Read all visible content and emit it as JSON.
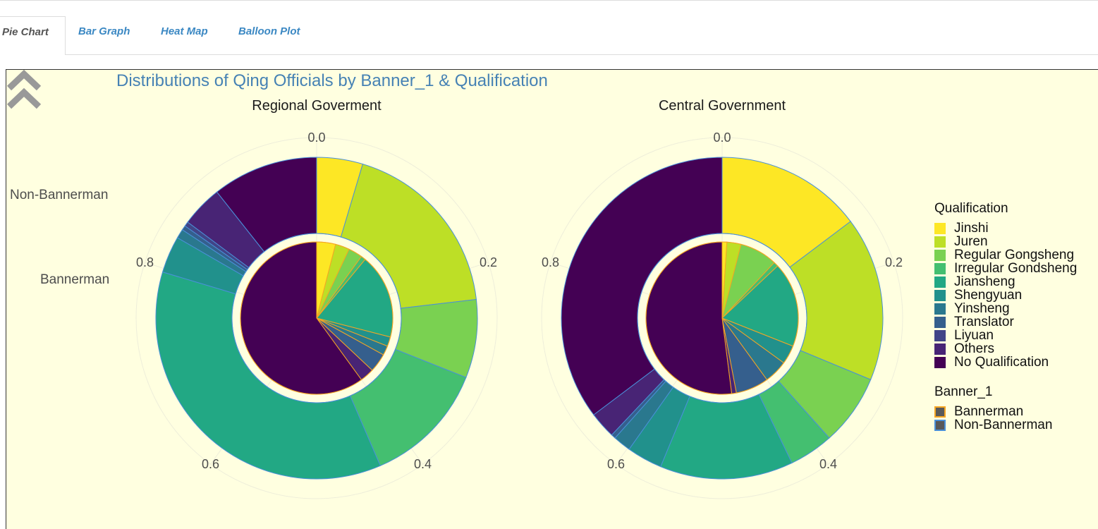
{
  "tabs": [
    {
      "label": "Pie Chart",
      "active": true
    },
    {
      "label": "Bar Graph",
      "active": false
    },
    {
      "label": "Heat Map",
      "active": false
    },
    {
      "label": "Balloon Plot",
      "active": false
    }
  ],
  "chart_title": "Distributions of Qing Officials by Banner_1 & Qualification",
  "ring_labels": {
    "outer": "Non-Bannerman",
    "inner": "Bannerman"
  },
  "tick_labels": [
    "0.0",
    "0.2",
    "0.4",
    "0.6",
    "0.8"
  ],
  "legend": {
    "qualification_title": "Qualification",
    "banner_title": "Banner_1",
    "banner_items": [
      {
        "label": "Bannerman",
        "border": "#f5a623"
      },
      {
        "label": "Non-Bannerman",
        "border": "#4a90d9"
      }
    ]
  },
  "colors": {
    "Jinshi": "#fde725",
    "Juren": "#bddf26",
    "Regular Gongsheng": "#7ad151",
    "Irregular Gondsheng": "#44bf70",
    "Jiansheng": "#22a884",
    "Shengyuan": "#21918c",
    "Yinsheng": "#2a788e",
    "Translator": "#355f8d",
    "Liyuan": "#414487",
    "Others": "#482475",
    "No Qualification": "#440154"
  },
  "chart_data": {
    "type": "pie",
    "categories": [
      "Jinshi",
      "Juren",
      "Regular Gongsheng",
      "Irregular Gondsheng",
      "Jiansheng",
      "Shengyuan",
      "Yinsheng",
      "Translator",
      "Liyuan",
      "Others",
      "No Qualification"
    ],
    "ring_groups": [
      "Bannerman",
      "Non-Bannerman"
    ],
    "panels": [
      {
        "name": "Regional Goverment",
        "series": [
          {
            "name": "Bannerman",
            "values": [
              0.04,
              0.03,
              0.03,
              0.01,
              0.18,
              0.02,
              0.02,
              0.04,
              0.0,
              0.03,
              0.6
            ]
          },
          {
            "name": "Non-Bannerman",
            "values": [
              0.05,
              0.2,
              0.085,
              0.135,
              0.39,
              0.04,
              0.01,
              0.005,
              0.005,
              0.045,
              0.115
            ]
          }
        ]
      },
      {
        "name": "Central Government",
        "series": [
          {
            "name": "Bannerman",
            "values": [
              0.01,
              0.03,
              0.08,
              0.01,
              0.18,
              0.04,
              0.05,
              0.07,
              0.0,
              0.01,
              0.52
            ]
          },
          {
            "name": "Non-Bannerman",
            "values": [
              0.165,
              0.185,
              0.08,
              0.05,
              0.15,
              0.04,
              0.02,
              0.005,
              0.0,
              0.03,
              0.395
            ]
          }
        ]
      }
    ],
    "axis": {
      "theta_ticks": [
        0.0,
        0.2,
        0.4,
        0.6,
        0.8
      ],
      "direction": "clockwise",
      "start": "top"
    },
    "legend_position": "right"
  }
}
